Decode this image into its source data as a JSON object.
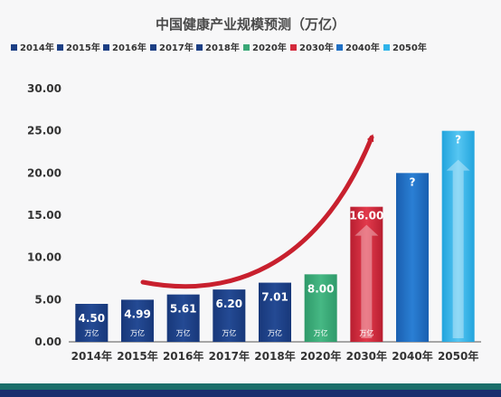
{
  "chart_data": {
    "type": "bar",
    "title": "中国健康产业规模预测（万亿）",
    "categories": [
      "2014年",
      "2015年",
      "2016年",
      "2017年",
      "2018年",
      "2020年",
      "2030年",
      "2040年",
      "2050年"
    ],
    "values": [
      4.5,
      4.99,
      5.61,
      6.2,
      7.01,
      8.0,
      16.0,
      20.0,
      25.0
    ],
    "value_labels": [
      "4.50",
      "4.99",
      "5.61",
      "6.20",
      "7.01",
      "8.00",
      "16.00",
      "?",
      "?"
    ],
    "unit_labels": [
      "万亿",
      "万亿",
      "万亿",
      "万亿",
      "万亿",
      "万亿",
      "万亿",
      "",
      ""
    ],
    "colors": [
      "#1c3f84",
      "#1c3f84",
      "#1c3f84",
      "#1c3f84",
      "#1c3f84",
      "#3aa877",
      "#d42a3c",
      "#1f6fc4",
      "#2fb4ea"
    ],
    "legend": [
      "2014年",
      "2015年",
      "2016年",
      "2017年",
      "2018年",
      "2020年",
      "2030年",
      "2040年",
      "2050年"
    ],
    "legend_position": "top",
    "yticks": [
      "0.00",
      "5.00",
      "10.00",
      "15.00",
      "20.00",
      "25.00",
      "30.00"
    ],
    "ylim": [
      0,
      30
    ],
    "grid": false,
    "trend_arrow": true
  },
  "footer_colors": [
    "#1a6e6a",
    "#1a2f6e"
  ]
}
